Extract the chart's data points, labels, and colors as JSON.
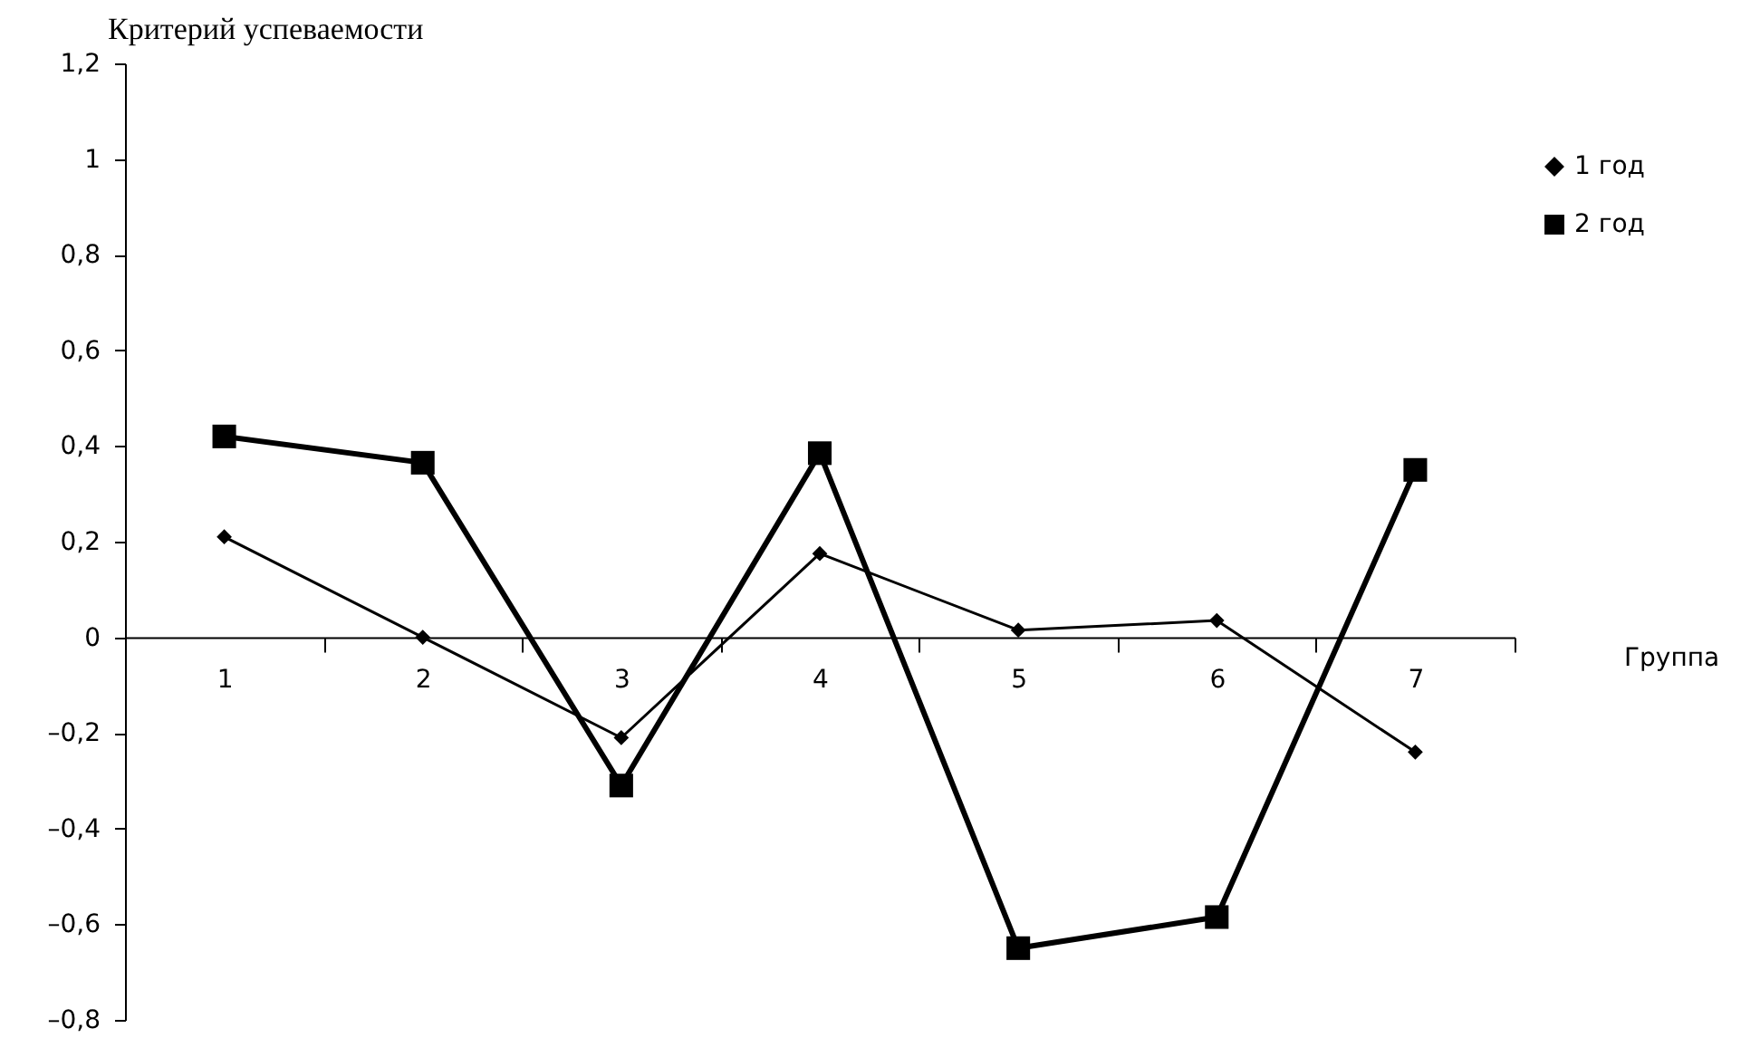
{
  "chart_data": {
    "type": "line",
    "ylabel": "Критерий успеваемости",
    "xlabel": "Группа",
    "categories": [
      "1",
      "2",
      "3",
      "4",
      "5",
      "6",
      "7"
    ],
    "series": [
      {
        "name": "1 год",
        "color": "#000000",
        "marker": "diamond",
        "values": [
          0.21,
          0.0,
          -0.21,
          0.175,
          0.015,
          0.035,
          -0.24
        ]
      },
      {
        "name": "2 год",
        "color": "#000000",
        "marker": "square",
        "values": [
          0.42,
          0.365,
          -0.31,
          0.385,
          -0.65,
          -0.585,
          0.35
        ]
      }
    ],
    "ylim": [
      -0.8,
      1.2
    ],
    "yticks": [
      {
        "value": -0.8,
        "label": "–0,8"
      },
      {
        "value": -0.6,
        "label": "–0,6"
      },
      {
        "value": -0.4,
        "label": "–0,4"
      },
      {
        "value": -0.2,
        "label": "–0,2"
      },
      {
        "value": 0,
        "label": "0"
      },
      {
        "value": 0.2,
        "label": "0,2"
      },
      {
        "value": 0.4,
        "label": "0,4"
      },
      {
        "value": 0.6,
        "label": "0,6"
      },
      {
        "value": 0.8,
        "label": "0,8"
      },
      {
        "value": 1,
        "label": "1"
      },
      {
        "value": 1.2,
        "label": "1,2"
      }
    ],
    "grid": false,
    "legend": "right"
  }
}
